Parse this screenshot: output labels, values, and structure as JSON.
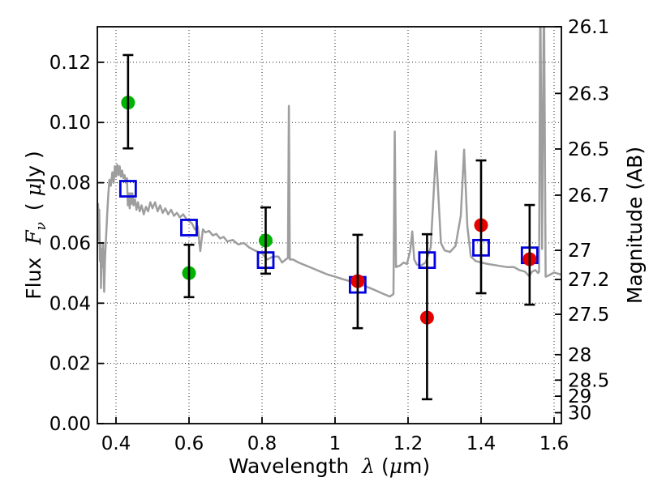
{
  "figure": {
    "background": "#ffffff"
  },
  "chart_data": {
    "type": "line",
    "title": "",
    "xlabel": "Wavelength  λ (μm)",
    "ylabel": "Flux Fν ( μJy )",
    "y2label": "Magnitude (AB)",
    "xlabel_parts": [
      {
        "t": "Wavelength "
      },
      {
        "t": "λ",
        "it": 1,
        "dx": 8
      },
      {
        "t": " ("
      },
      {
        "t": "μ",
        "it": 1
      },
      {
        "t": "m)"
      }
    ],
    "ylabel_parts": [
      {
        "t": "Flux "
      },
      {
        "t": "F",
        "it": 1,
        "dx": 8
      },
      {
        "t": "ν",
        "it": 1,
        "sub": 1
      },
      {
        "t": " ( ",
        "dx": 6
      },
      {
        "t": "μ",
        "it": 1
      },
      {
        "t": "Jy )"
      }
    ],
    "xlim": [
      0.3489,
      1.62
    ],
    "ylim": [
      0,
      0.1318
    ],
    "grid": "dotted",
    "legend": "none",
    "x_ticks": [
      {
        "v": 0.4,
        "l": "0.4"
      },
      {
        "v": 0.6,
        "l": "0.6"
      },
      {
        "v": 0.8,
        "l": "0.8"
      },
      {
        "v": 1.0,
        "l": "1"
      },
      {
        "v": 1.2,
        "l": "1.2"
      },
      {
        "v": 1.4,
        "l": "1.4"
      },
      {
        "v": 1.6,
        "l": "1.6"
      }
    ],
    "y_ticks": [
      {
        "v": 0.0,
        "l": "0.00"
      },
      {
        "v": 0.02,
        "l": "0.02"
      },
      {
        "v": 0.04,
        "l": "0.04"
      },
      {
        "v": 0.06,
        "l": "0.06"
      },
      {
        "v": 0.08,
        "l": "0.08"
      },
      {
        "v": 0.1,
        "l": "0.10"
      },
      {
        "v": 0.12,
        "l": "0.12"
      }
    ],
    "y2_ticks": [
      {
        "l": "26.1",
        "flux": 0.13183
      },
      {
        "l": "26.3",
        "flux": 0.10965
      },
      {
        "l": "26.5",
        "flux": 0.0912
      },
      {
        "l": "26.7",
        "flux": 0.07586
      },
      {
        "l": "27",
        "flux": 0.05754
      },
      {
        "l": "27.2",
        "flux": 0.04786
      },
      {
        "l": "27.5",
        "flux": 0.03631
      },
      {
        "l": "28",
        "flux": 0.02291
      },
      {
        "l": "28.5",
        "flux": 0.01445
      },
      {
        "l": "29",
        "flux": 0.00912
      },
      {
        "l": "30",
        "flux": 0.00363
      }
    ],
    "colors": {
      "spectrum": "#9e9e9e",
      "squares": "#0000e0",
      "green": "#00b300",
      "red": "#e60000",
      "errorbars": "#000000",
      "background": "#ffffff"
    },
    "series": [
      {
        "name": "gray-spectrum-line",
        "marker": "line",
        "points": [
          [
            0.349,
            0.066
          ],
          [
            0.351,
            0.073
          ],
          [
            0.3525,
            0.061
          ],
          [
            0.354,
            0.071
          ],
          [
            0.356,
            0.054
          ],
          [
            0.3575,
            0.06
          ],
          [
            0.359,
            0.045
          ],
          [
            0.361,
            0.058
          ],
          [
            0.363,
            0.052
          ],
          [
            0.365,
            0.06
          ],
          [
            0.3675,
            0.0438
          ],
          [
            0.37,
            0.055
          ],
          [
            0.373,
            0.062
          ],
          [
            0.376,
            0.07
          ],
          [
            0.379,
            0.076
          ],
          [
            0.382,
            0.081
          ],
          [
            0.386,
            0.079
          ],
          [
            0.39,
            0.0835
          ],
          [
            0.3935,
            0.08
          ],
          [
            0.397,
            0.0855
          ],
          [
            0.4,
            0.082
          ],
          [
            0.4035,
            0.086
          ],
          [
            0.407,
            0.0825
          ],
          [
            0.41,
            0.0855
          ],
          [
            0.4135,
            0.082
          ],
          [
            0.417,
            0.084
          ],
          [
            0.42,
            0.0815
          ],
          [
            0.4235,
            0.0825
          ],
          [
            0.427,
            0.08
          ],
          [
            0.43,
            0.0815
          ],
          [
            0.4325,
            0.0725
          ],
          [
            0.435,
            0.0765
          ],
          [
            0.4375,
            0.0715
          ],
          [
            0.44,
            0.0765
          ],
          [
            0.4425,
            0.073
          ],
          [
            0.445,
            0.0765
          ],
          [
            0.448,
            0.0725
          ],
          [
            0.452,
            0.0745
          ],
          [
            0.456,
            0.071
          ],
          [
            0.46,
            0.0735
          ],
          [
            0.465,
            0.0705
          ],
          [
            0.47,
            0.0725
          ],
          [
            0.476,
            0.0695
          ],
          [
            0.482,
            0.072
          ],
          [
            0.488,
            0.0705
          ],
          [
            0.494,
            0.0735
          ],
          [
            0.5,
            0.0715
          ],
          [
            0.507,
            0.0735
          ],
          [
            0.514,
            0.0705
          ],
          [
            0.521,
            0.0725
          ],
          [
            0.528,
            0.07
          ],
          [
            0.535,
            0.0715
          ],
          [
            0.543,
            0.0695
          ],
          [
            0.551,
            0.071
          ],
          [
            0.559,
            0.069
          ],
          [
            0.567,
            0.07
          ],
          [
            0.575,
            0.0685
          ],
          [
            0.584,
            0.0695
          ],
          [
            0.593,
            0.068
          ],
          [
            0.6,
            0.0672
          ],
          [
            0.608,
            0.0665
          ],
          [
            0.616,
            0.0645
          ],
          [
            0.624,
            0.0655
          ],
          [
            0.631,
            0.0573
          ],
          [
            0.638,
            0.0645
          ],
          [
            0.645,
            0.0635
          ],
          [
            0.655,
            0.064
          ],
          [
            0.665,
            0.0625
          ],
          [
            0.675,
            0.063
          ],
          [
            0.685,
            0.0615
          ],
          [
            0.695,
            0.062
          ],
          [
            0.705,
            0.0605
          ],
          [
            0.72,
            0.061
          ],
          [
            0.735,
            0.0595
          ],
          [
            0.75,
            0.06
          ],
          [
            0.765,
            0.0585
          ],
          [
            0.78,
            0.0575
          ],
          [
            0.8,
            0.0565
          ],
          [
            0.815,
            0.0545
          ],
          [
            0.83,
            0.0555
          ],
          [
            0.845,
            0.0555
          ],
          [
            0.855,
            0.0535
          ],
          [
            0.865,
            0.0545
          ],
          [
            0.871,
            0.055
          ],
          [
            0.8735,
            0.1055
          ],
          [
            0.876,
            0.0545
          ],
          [
            0.885,
            0.0545
          ],
          [
            0.9,
            0.0535
          ],
          [
            0.92,
            0.0525
          ],
          [
            0.94,
            0.0515
          ],
          [
            0.96,
            0.0505
          ],
          [
            0.98,
            0.0495
          ],
          [
            1.0,
            0.0488
          ],
          [
            1.02,
            0.048
          ],
          [
            1.05,
            0.047
          ],
          [
            1.08,
            0.0458
          ],
          [
            1.11,
            0.0443
          ],
          [
            1.13,
            0.0432
          ],
          [
            1.15,
            0.0422
          ],
          [
            1.16,
            0.043
          ],
          [
            1.1635,
            0.097
          ],
          [
            1.167,
            0.052
          ],
          [
            1.178,
            0.0525
          ],
          [
            1.188,
            0.0535
          ],
          [
            1.197,
            0.053
          ],
          [
            1.206,
            0.0575
          ],
          [
            1.2115,
            0.0638
          ],
          [
            1.217,
            0.0545
          ],
          [
            1.224,
            0.0528
          ],
          [
            1.236,
            0.0525
          ],
          [
            1.248,
            0.0535
          ],
          [
            1.262,
            0.0585
          ],
          [
            1.2765,
            0.0905
          ],
          [
            1.29,
            0.06
          ],
          [
            1.3,
            0.0575
          ],
          [
            1.315,
            0.057
          ],
          [
            1.33,
            0.059
          ],
          [
            1.3445,
            0.069
          ],
          [
            1.3535,
            0.091
          ],
          [
            1.3625,
            0.0655
          ],
          [
            1.372,
            0.0555
          ],
          [
            1.385,
            0.054
          ],
          [
            1.4,
            0.0535
          ],
          [
            1.42,
            0.053
          ],
          [
            1.445,
            0.0525
          ],
          [
            1.47,
            0.052
          ],
          [
            1.49,
            0.052
          ],
          [
            1.505,
            0.051
          ],
          [
            1.52,
            0.0505
          ],
          [
            1.5315,
            0.049
          ],
          [
            1.54,
            0.0505
          ],
          [
            1.549,
            0.051
          ],
          [
            1.556,
            0.05
          ],
          [
            1.559,
            0.0505
          ],
          [
            1.5622,
            0.145
          ],
          [
            1.5672,
            0.058
          ],
          [
            1.5722,
            0.145
          ],
          [
            1.577,
            0.0488
          ],
          [
            1.585,
            0.0492
          ],
          [
            1.6,
            0.0502
          ],
          [
            1.62,
            0.0495
          ]
        ]
      },
      {
        "name": "blue-open-squares",
        "marker": "square-open",
        "points": [
          [
            0.433,
            0.078
          ],
          [
            0.6,
            0.0651
          ],
          [
            0.81,
            0.0543
          ],
          [
            1.062,
            0.0461
          ],
          [
            1.252,
            0.0543
          ],
          [
            1.4,
            0.0584
          ],
          [
            1.533,
            0.0559
          ]
        ]
      },
      {
        "name": "green-filled-circles",
        "marker": "circle",
        "points": [
          {
            "x": 0.433,
            "y": 0.1066,
            "lo": 0.0914,
            "hi": 0.1224
          },
          {
            "x": 0.6,
            "y": 0.05,
            "lo": 0.042,
            "hi": 0.0594
          },
          {
            "x": 0.81,
            "y": 0.0608,
            "lo": 0.0498,
            "hi": 0.0718
          }
        ]
      },
      {
        "name": "red-filled-circles",
        "marker": "circle",
        "points": [
          {
            "x": 1.062,
            "y": 0.0473,
            "lo": 0.0317,
            "hi": 0.0627
          },
          {
            "x": 1.252,
            "y": 0.0352,
            "lo": 0.0081,
            "hi": 0.0629
          },
          {
            "x": 1.4,
            "y": 0.0659,
            "lo": 0.0433,
            "hi": 0.0874
          },
          {
            "x": 1.533,
            "y": 0.0546,
            "lo": 0.0395,
            "hi": 0.0726
          }
        ]
      }
    ]
  }
}
